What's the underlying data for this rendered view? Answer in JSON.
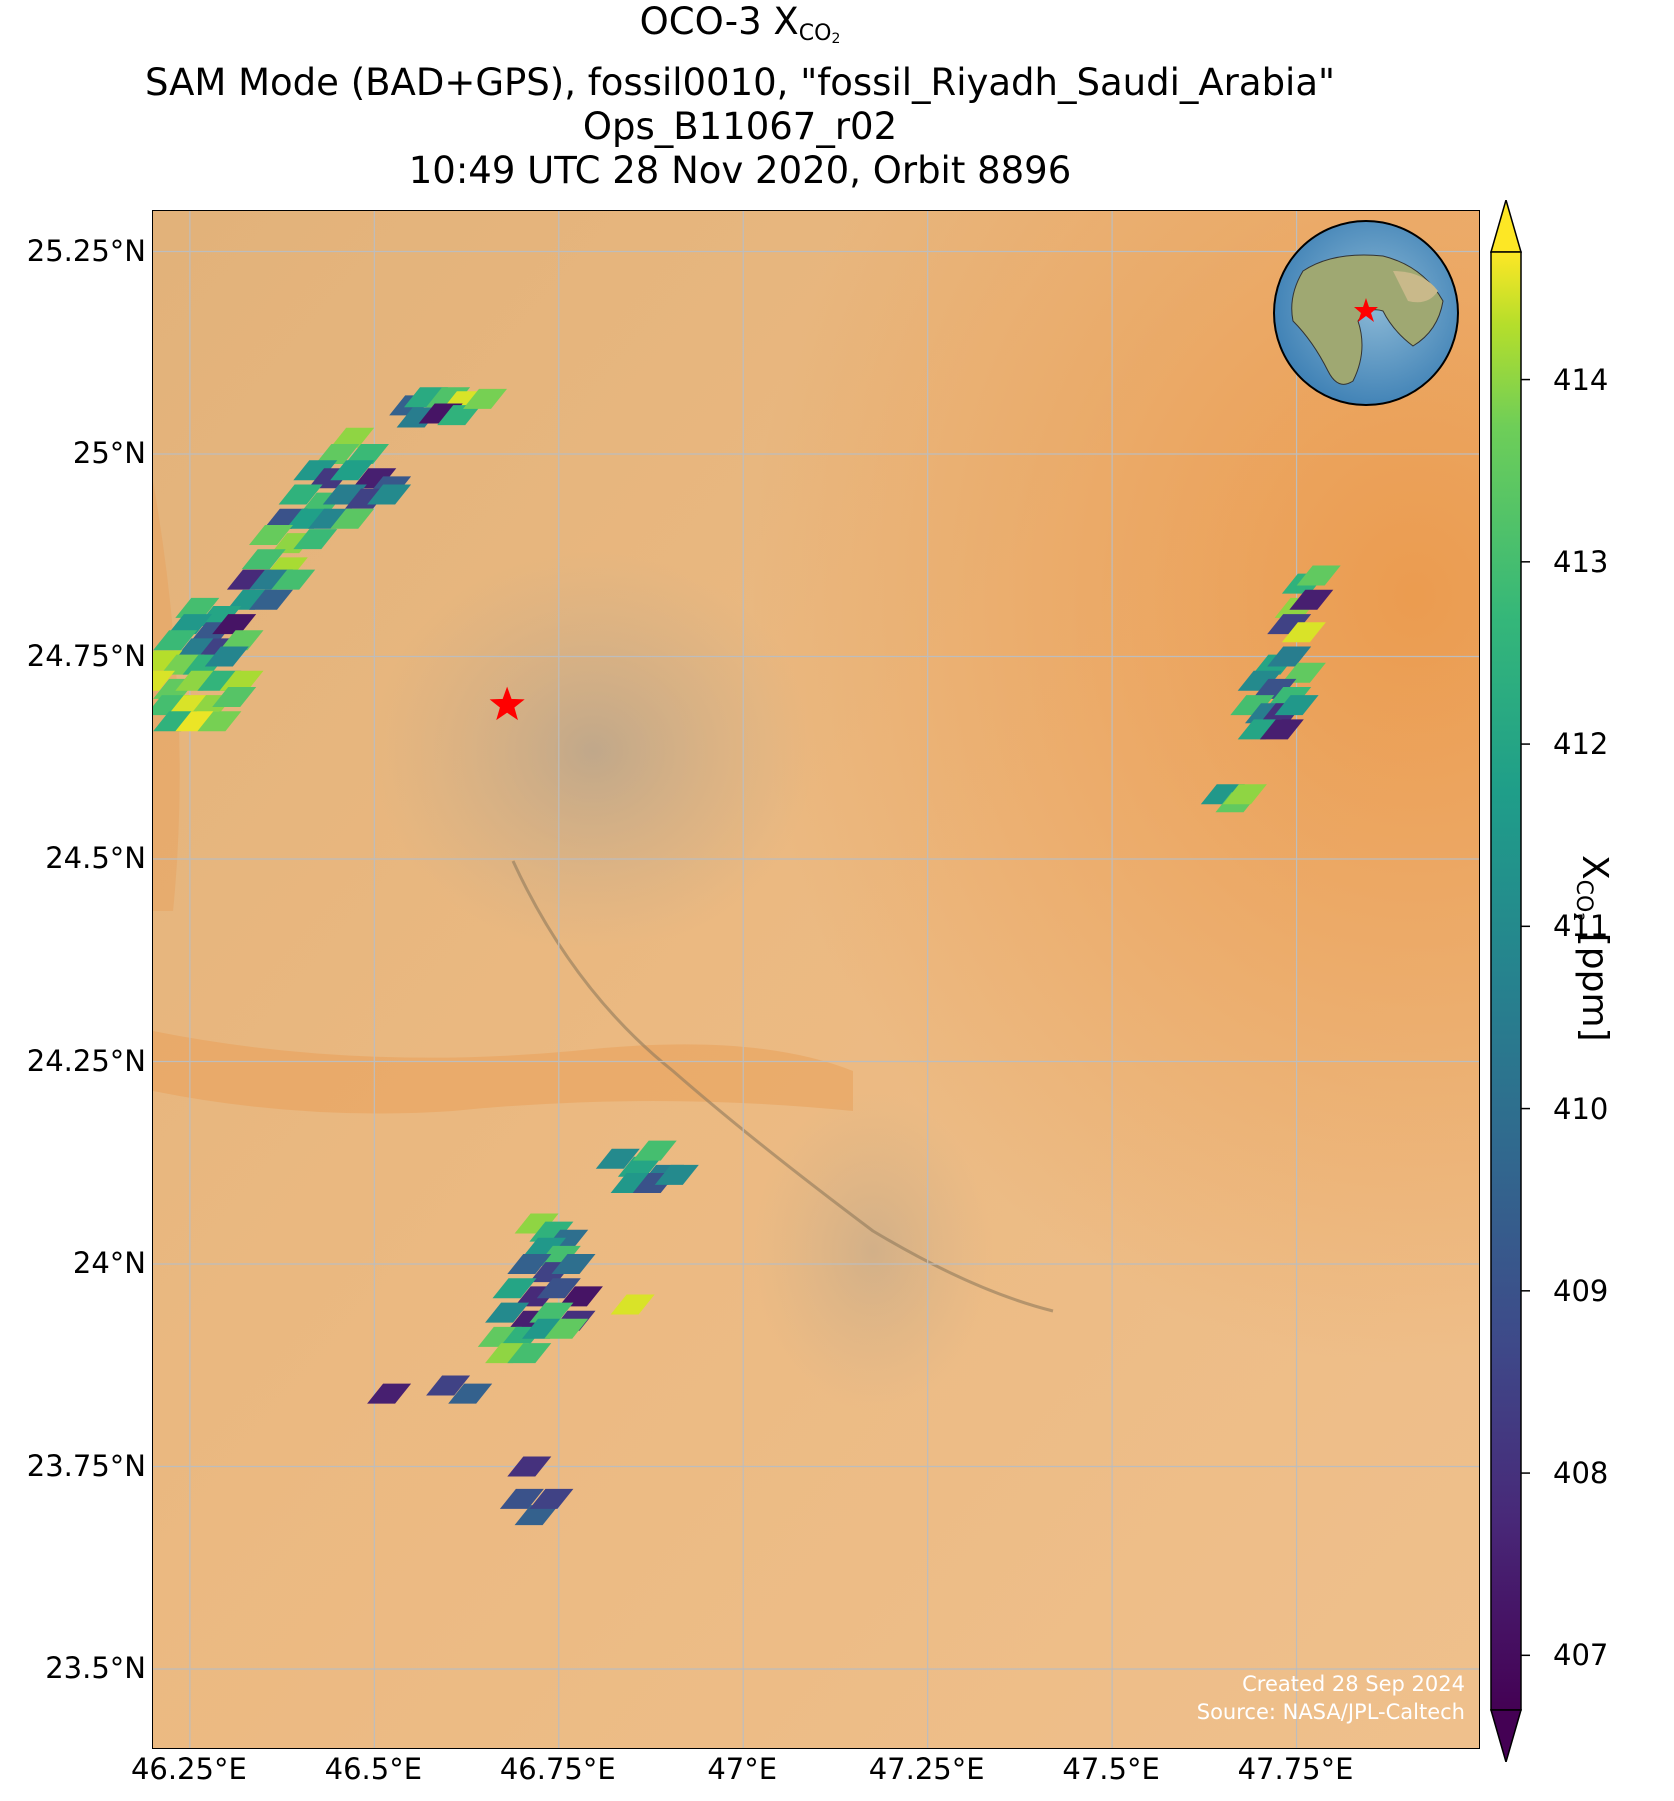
{
  "title": {
    "line1_prefix": "OCO-3 X",
    "line1_sub": "CO",
    "line1_sub2": "2",
    "line2": "SAM Mode (BAD+GPS), fossil0010, \"fossil_Riyadh_Saudi_Arabia\"",
    "line3": "Ops_B11067_r02",
    "line4": "10:49 UTC 28 Nov 2020, Orbit 8896"
  },
  "axes": {
    "lat_ticks": [
      "25.25°N",
      "25°N",
      "24.75°N",
      "24.5°N",
      "24.25°N",
      "24°N",
      "23.75°N",
      "23.5°N"
    ],
    "lon_ticks": [
      "46.25°E",
      "46.5°E",
      "46.75°E",
      "47°E",
      "47.25°E",
      "47.5°E",
      "47.75°E"
    ],
    "lat_values": [
      25.25,
      25.0,
      24.75,
      24.5,
      24.25,
      24.0,
      23.75,
      23.5
    ],
    "lon_values": [
      46.25,
      46.5,
      46.75,
      47.0,
      47.25,
      47.5,
      47.75
    ],
    "lat_range": [
      23.4,
      25.3
    ],
    "lon_range": [
      46.2,
      48.0
    ],
    "grid": true
  },
  "colorbar": {
    "ticks": [
      "407",
      "408",
      "409",
      "410",
      "411",
      "412",
      "413",
      "414"
    ],
    "range": [
      406.7,
      414.7
    ],
    "colormap": "viridis",
    "extend": "both",
    "label_prefix": "X",
    "label_sub": "CO",
    "label_sub2": "2",
    "label_suffix": " [ppm]"
  },
  "credit": {
    "line1": "Created 28 Sep 2024",
    "line2": "Source: NASA/JPL-Caltech"
  },
  "target": {
    "name": "star-marker",
    "lon": 46.68,
    "lat": 24.69,
    "color": "#ff0000"
  },
  "inset": {
    "name": "globe-inset",
    "marker_color": "#ff0000"
  },
  "chart_data": {
    "type": "scatter",
    "description_units": "lon/lat of soundings with XCO2 in ppm",
    "points": [
      [
        46.55,
        25.06,
        409.5
      ],
      [
        46.57,
        25.07,
        412.2
      ],
      [
        46.6,
        25.07,
        413.2
      ],
      [
        46.62,
        25.065,
        414.5
      ],
      [
        46.56,
        25.045,
        410.5
      ],
      [
        46.59,
        25.05,
        407.2
      ],
      [
        46.615,
        25.048,
        412.5
      ],
      [
        46.65,
        25.068,
        413.8
      ],
      [
        46.47,
        25.02,
        414.0
      ],
      [
        46.45,
        25.0,
        413.5
      ],
      [
        46.49,
        25.0,
        412.8
      ],
      [
        46.42,
        24.98,
        411.5
      ],
      [
        46.44,
        24.97,
        408.2
      ],
      [
        46.47,
        24.98,
        411.8
      ],
      [
        46.5,
        24.97,
        407.5
      ],
      [
        46.52,
        24.96,
        409.2
      ],
      [
        46.4,
        24.95,
        412.5
      ],
      [
        46.43,
        24.94,
        413.0
      ],
      [
        46.46,
        24.95,
        410.5
      ],
      [
        46.49,
        24.945,
        408.5
      ],
      [
        46.52,
        24.95,
        411.0
      ],
      [
        46.38,
        24.92,
        409.0
      ],
      [
        46.41,
        24.92,
        411.8
      ],
      [
        46.44,
        24.92,
        410.8
      ],
      [
        46.47,
        24.92,
        413.4
      ],
      [
        46.36,
        24.9,
        413.6
      ],
      [
        46.39,
        24.89,
        414.0
      ],
      [
        46.42,
        24.895,
        412.8
      ],
      [
        46.35,
        24.87,
        413.0
      ],
      [
        46.38,
        24.86,
        414.2
      ],
      [
        46.33,
        24.845,
        407.8
      ],
      [
        46.36,
        24.845,
        410.5
      ],
      [
        46.39,
        24.845,
        413.0
      ],
      [
        46.33,
        24.82,
        411.5
      ],
      [
        46.36,
        24.82,
        409.5
      ],
      [
        46.26,
        24.81,
        413.0
      ],
      [
        46.29,
        24.8,
        412.0
      ],
      [
        46.25,
        24.79,
        411.5
      ],
      [
        46.28,
        24.78,
        409.2
      ],
      [
        46.31,
        24.79,
        407.2
      ],
      [
        46.23,
        24.77,
        412.8
      ],
      [
        46.26,
        24.76,
        410.5
      ],
      [
        46.29,
        24.76,
        408.5
      ],
      [
        46.32,
        24.77,
        413.5
      ],
      [
        46.21,
        24.745,
        414.3
      ],
      [
        46.24,
        24.74,
        413.8
      ],
      [
        46.27,
        24.74,
        412.5
      ],
      [
        46.3,
        24.75,
        410.8
      ],
      [
        46.2,
        24.72,
        414.5
      ],
      [
        46.23,
        24.71,
        413.5
      ],
      [
        46.26,
        24.72,
        414.0
      ],
      [
        46.29,
        24.72,
        412.6
      ],
      [
        46.32,
        24.72,
        414.2
      ],
      [
        46.22,
        24.69,
        413.0
      ],
      [
        46.25,
        24.69,
        414.5
      ],
      [
        46.28,
        24.69,
        414.0
      ],
      [
        46.31,
        24.7,
        413.3
      ],
      [
        46.23,
        24.67,
        412.5
      ],
      [
        46.26,
        24.67,
        414.6
      ],
      [
        46.29,
        24.67,
        413.8
      ],
      [
        47.76,
        24.84,
        412.5
      ],
      [
        47.78,
        24.85,
        413.5
      ],
      [
        47.75,
        24.81,
        414.0
      ],
      [
        47.77,
        24.82,
        407.5
      ],
      [
        47.74,
        24.79,
        408.5
      ],
      [
        47.76,
        24.78,
        414.5
      ],
      [
        47.72,
        24.74,
        412.0
      ],
      [
        47.74,
        24.75,
        410.5
      ],
      [
        47.76,
        24.73,
        413.5
      ],
      [
        47.7,
        24.72,
        411.0
      ],
      [
        47.72,
        24.71,
        409.0
      ],
      [
        47.74,
        24.7,
        412.8
      ],
      [
        47.69,
        24.69,
        413.0
      ],
      [
        47.71,
        24.68,
        410.5
      ],
      [
        47.73,
        24.68,
        408.0
      ],
      [
        47.75,
        24.69,
        411.5
      ],
      [
        47.7,
        24.66,
        412.0
      ],
      [
        47.73,
        24.66,
        407.5
      ],
      [
        47.65,
        24.58,
        411.5
      ],
      [
        47.67,
        24.57,
        413.5
      ],
      [
        47.68,
        24.58,
        414.0
      ],
      [
        46.83,
        24.13,
        411.0
      ],
      [
        46.86,
        24.12,
        412.0
      ],
      [
        46.88,
        24.14,
        413.0
      ],
      [
        46.89,
        24.11,
        410.5
      ],
      [
        46.85,
        24.1,
        411.5
      ],
      [
        46.88,
        24.1,
        409.0
      ],
      [
        46.91,
        24.11,
        411.0
      ],
      [
        46.72,
        24.05,
        414.0
      ],
      [
        46.74,
        24.04,
        412.5
      ],
      [
        46.76,
        24.03,
        410.0
      ],
      [
        46.73,
        24.02,
        411.5
      ],
      [
        46.75,
        24.01,
        413.0
      ],
      [
        46.71,
        24.0,
        409.5
      ],
      [
        46.74,
        23.99,
        408.5
      ],
      [
        46.77,
        24.0,
        410.0
      ],
      [
        46.69,
        23.97,
        412.0
      ],
      [
        46.72,
        23.96,
        407.8
      ],
      [
        46.75,
        23.97,
        409.0
      ],
      [
        46.78,
        23.96,
        407.2
      ],
      [
        46.68,
        23.94,
        411.0
      ],
      [
        46.71,
        23.93,
        407.5
      ],
      [
        46.74,
        23.94,
        413.0
      ],
      [
        46.77,
        23.93,
        408.0
      ],
      [
        46.67,
        23.91,
        413.5
      ],
      [
        46.7,
        23.91,
        412.5
      ],
      [
        46.73,
        23.92,
        411.5
      ],
      [
        46.76,
        23.92,
        413.5
      ],
      [
        46.68,
        23.89,
        414.0
      ],
      [
        46.71,
        23.89,
        413.0
      ],
      [
        46.85,
        23.95,
        414.5
      ],
      [
        46.52,
        23.84,
        407.5
      ],
      [
        46.6,
        23.85,
        408.5
      ],
      [
        46.63,
        23.84,
        409.5
      ],
      [
        46.71,
        23.75,
        408.0
      ],
      [
        46.7,
        23.71,
        409.0
      ],
      [
        46.72,
        23.69,
        409.5
      ],
      [
        46.74,
        23.71,
        408.5
      ]
    ]
  }
}
